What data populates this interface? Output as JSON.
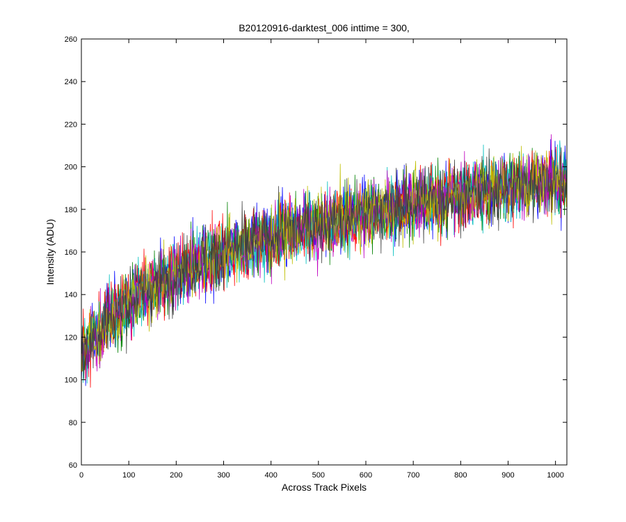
{
  "chart_data": {
    "type": "line",
    "title": "B20120916-darktest_006 inttime = 300,",
    "xlabel": "Across Track Pixels",
    "ylabel": "Intensity (ADU)",
    "xlim": [
      0,
      1024
    ],
    "ylim": [
      60,
      260
    ],
    "xticks": [
      "0",
      "100",
      "200",
      "300",
      "400",
      "500",
      "600",
      "700",
      "800",
      "900",
      "1000"
    ],
    "yticks": [
      "60",
      "80",
      "100",
      "120",
      "140",
      "160",
      "180",
      "200",
      "220",
      "240",
      "260"
    ],
    "grid": false,
    "legend": "none",
    "series_count": 7,
    "series_colors": [
      "#0000ff",
      "#008000",
      "#ff0000",
      "#00bfbf",
      "#bf00bf",
      "#bfbf00",
      "#404040"
    ],
    "trend": {
      "x": [
        0,
        50,
        100,
        200,
        300,
        400,
        500,
        600,
        700,
        800,
        900,
        1024
      ],
      "y": [
        112,
        127,
        137,
        150,
        160,
        167,
        173,
        178,
        183,
        187,
        191,
        194
      ]
    },
    "noise_amplitude": 14
  }
}
